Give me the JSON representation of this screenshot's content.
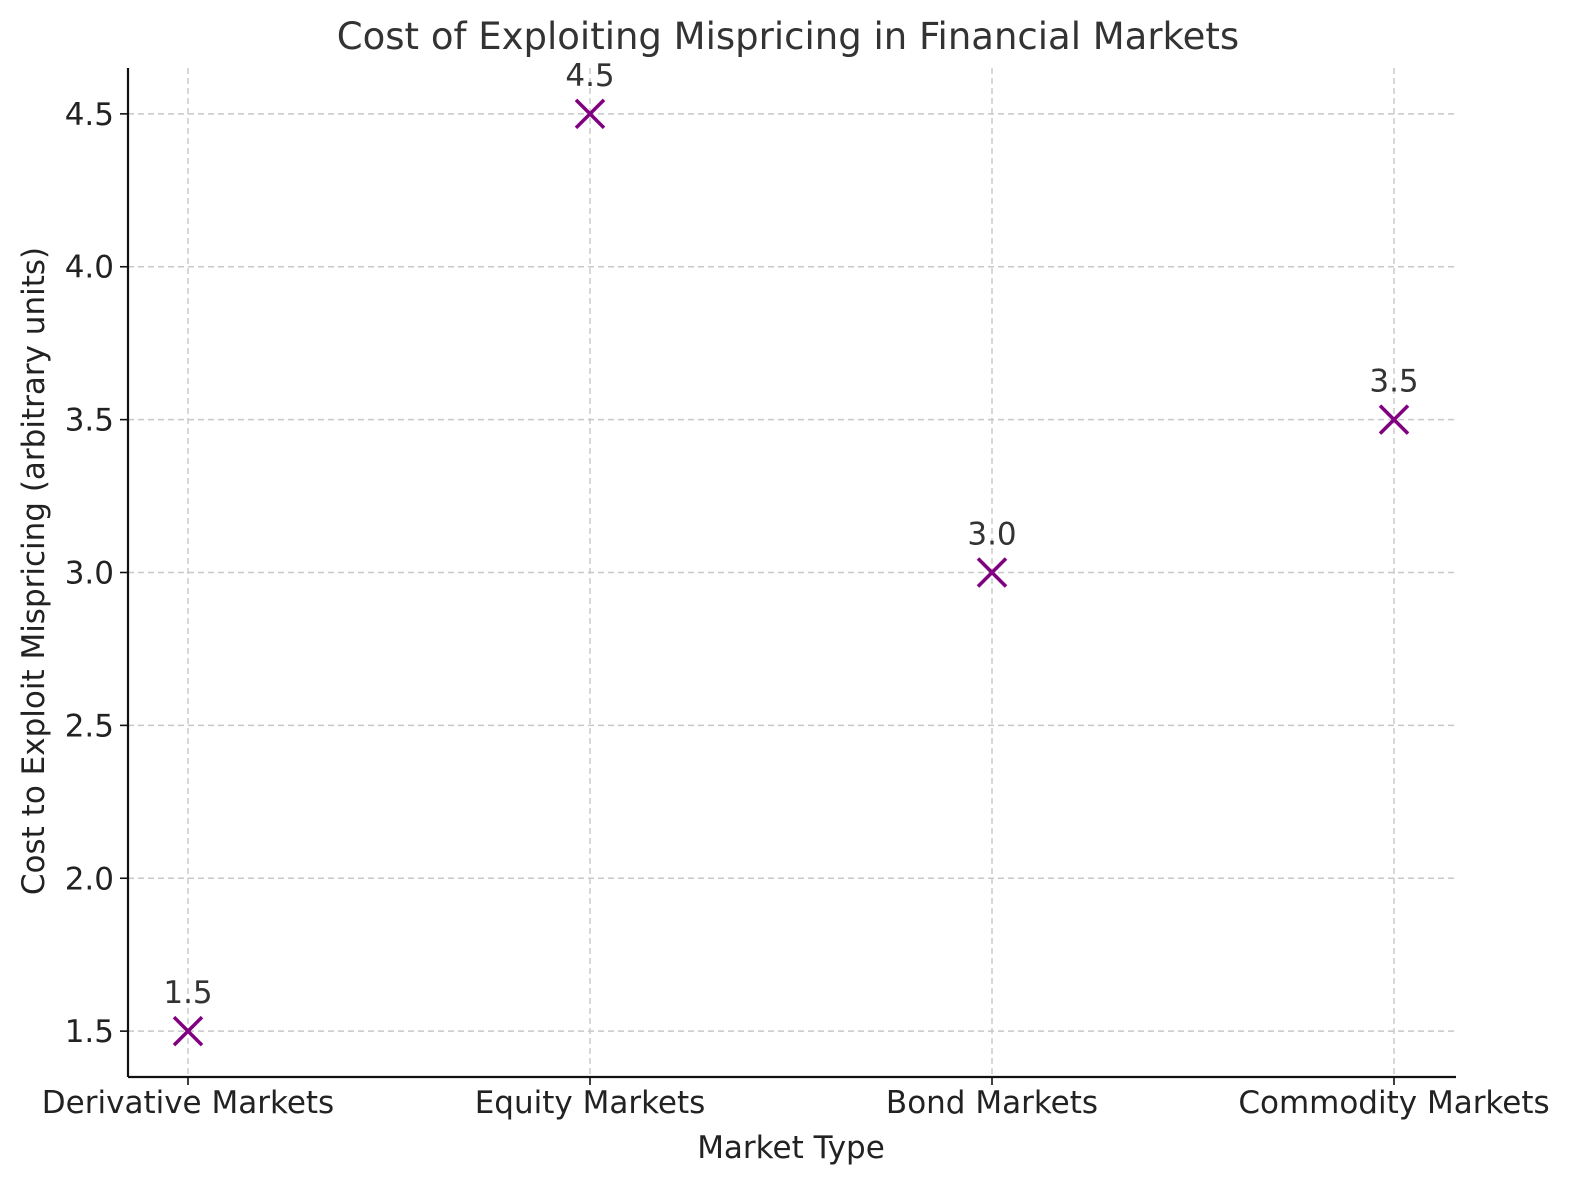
{
  "chart_data": {
    "type": "scatter",
    "title": "Cost of Exploiting Mispricing in Financial Markets",
    "xlabel": "Market Type",
    "ylabel": "Cost to Exploit Mispricing (arbitrary units)",
    "categories": [
      "Derivative Markets",
      "Equity Markets",
      "Bond Markets",
      "Commodity Markets"
    ],
    "values": [
      1.5,
      4.5,
      3.0,
      3.5
    ],
    "data_labels": [
      "1.5",
      "4.5",
      "3.0",
      "3.5"
    ],
    "y_ticks": [
      1.5,
      2.0,
      2.5,
      3.0,
      3.5,
      4.0,
      4.5
    ],
    "y_tick_labels": [
      "1.5",
      "2.0",
      "2.5",
      "3.0",
      "3.5",
      "4.0",
      "4.5"
    ],
    "ylim": [
      1.35,
      4.65
    ],
    "marker": "x",
    "marker_color": "#800080",
    "grid": true
  }
}
